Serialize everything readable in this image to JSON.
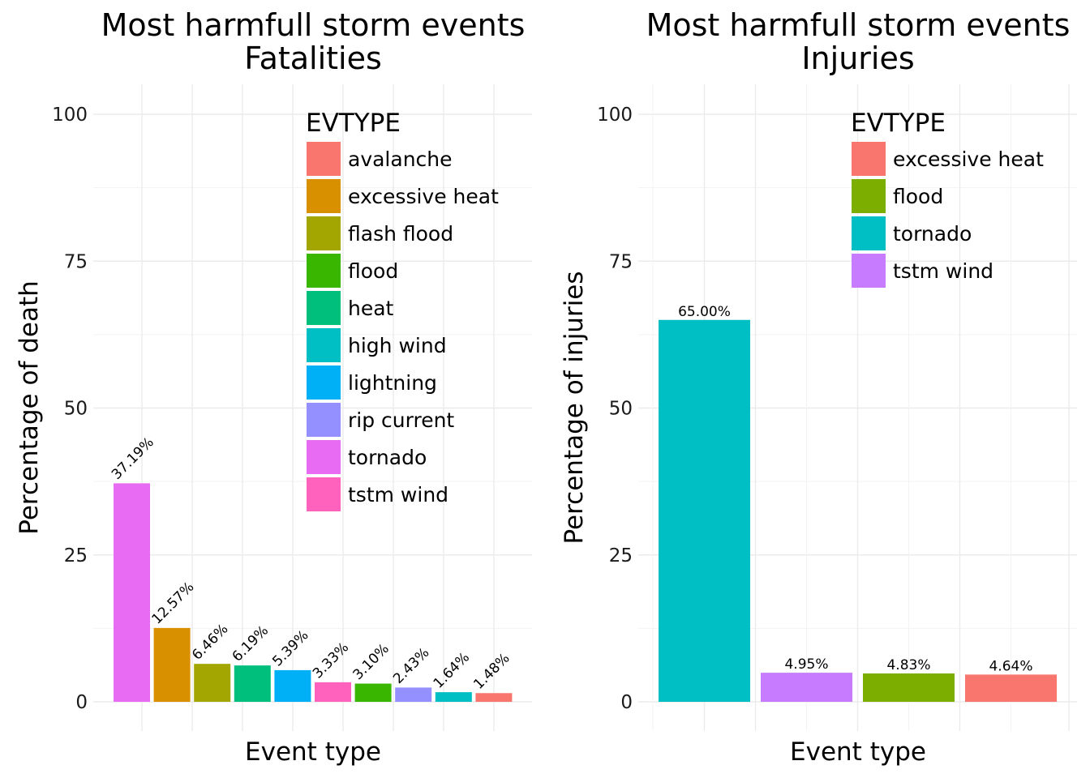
{
  "chart_data": [
    {
      "type": "bar",
      "title": "Most harmfull storm events",
      "subtitle": "Fatalities",
      "xlabel": "Event type",
      "ylabel": "Percentage of death",
      "ylim": [
        0,
        100
      ],
      "yticks": [
        "0",
        "25",
        "50",
        "75",
        "100"
      ],
      "grid": true,
      "legend_title": "EVTYPE",
      "legend_position": "top-right",
      "legend": [
        {
          "label": "avalanche",
          "color": "#F8766D"
        },
        {
          "label": "excessive heat",
          "color": "#D89000"
        },
        {
          "label": "flash flood",
          "color": "#A3A500"
        },
        {
          "label": "flood",
          "color": "#39B600"
        },
        {
          "label": "heat",
          "color": "#00BF7D"
        },
        {
          "label": "high wind",
          "color": "#00BFC4"
        },
        {
          "label": "lightning",
          "color": "#00B0F6"
        },
        {
          "label": "rip current",
          "color": "#9590FF"
        },
        {
          "label": "tornado",
          "color": "#E76BF3"
        },
        {
          "label": "tstm wind",
          "color": "#FF62BC"
        }
      ],
      "bars": [
        {
          "category": "tornado",
          "value": 37.19,
          "label": "37.19%",
          "color": "#E76BF3"
        },
        {
          "category": "excessive heat",
          "value": 12.57,
          "label": "12.57%",
          "color": "#D89000"
        },
        {
          "category": "flash flood",
          "value": 6.46,
          "label": "6.46%",
          "color": "#A3A500"
        },
        {
          "category": "heat",
          "value": 6.19,
          "label": "6.19%",
          "color": "#00BF7D"
        },
        {
          "category": "lightning",
          "value": 5.39,
          "label": "5.39%",
          "color": "#00B0F6"
        },
        {
          "category": "tstm wind",
          "value": 3.33,
          "label": "3.33%",
          "color": "#FF62BC"
        },
        {
          "category": "flood",
          "value": 3.1,
          "label": "3.10%",
          "color": "#39B600"
        },
        {
          "category": "rip current",
          "value": 2.43,
          "label": "2.43%",
          "color": "#9590FF"
        },
        {
          "category": "high wind",
          "value": 1.64,
          "label": "1.64%",
          "color": "#00BFC4"
        },
        {
          "category": "avalanche",
          "value": 1.48,
          "label": "1.48%",
          "color": "#F8766D"
        }
      ]
    },
    {
      "type": "bar",
      "title": "Most harmfull storm events",
      "subtitle": "Injuries",
      "xlabel": "Event type",
      "ylabel": "Percentage of injuries",
      "ylim": [
        0,
        100
      ],
      "yticks": [
        "0",
        "25",
        "50",
        "75",
        "100"
      ],
      "grid": true,
      "legend_title": "EVTYPE",
      "legend_position": "top-right",
      "legend": [
        {
          "label": "excessive heat",
          "color": "#F8766D"
        },
        {
          "label": "flood",
          "color": "#7CAE00"
        },
        {
          "label": "tornado",
          "color": "#00BFC4"
        },
        {
          "label": "tstm wind",
          "color": "#C77CFF"
        }
      ],
      "bars": [
        {
          "category": "tornado",
          "value": 65.0,
          "label": "65.00%",
          "color": "#00BFC4"
        },
        {
          "category": "tstm wind",
          "value": 4.95,
          "label": "4.95%",
          "color": "#C77CFF"
        },
        {
          "category": "flood",
          "value": 4.83,
          "label": "4.83%",
          "color": "#7CAE00"
        },
        {
          "category": "excessive heat",
          "value": 4.64,
          "label": "4.64%",
          "color": "#F8766D"
        }
      ]
    }
  ]
}
